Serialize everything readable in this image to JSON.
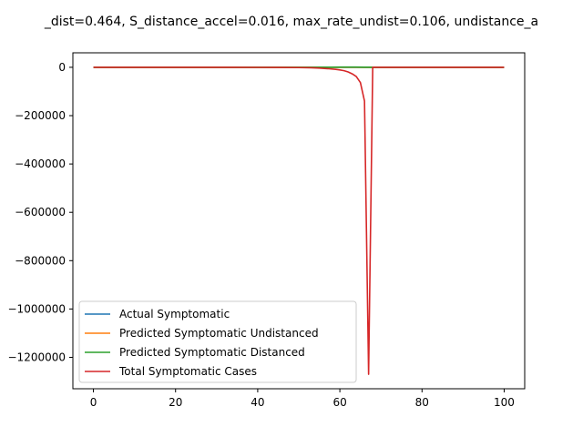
{
  "chart_data": {
    "type": "line",
    "title": "_dist=0.464, S_distance_accel=0.016, max_rate_undist=0.106, undistance_a",
    "xlabel": "",
    "ylabel": "",
    "xlim": [
      -5,
      105
    ],
    "ylim": [
      -1330000,
      60000
    ],
    "x_ticks": [
      0,
      20,
      40,
      60,
      80,
      100
    ],
    "y_ticks": [
      0,
      -200000,
      -400000,
      -600000,
      -800000,
      -1000000,
      -1200000
    ],
    "grid": false,
    "legend_position": "lower-left",
    "series": [
      {
        "name": "Actual Symptomatic",
        "color": "#1f77b4",
        "x": [
          0,
          100
        ],
        "y": [
          0,
          0
        ]
      },
      {
        "name": "Predicted Symptomatic Undistanced",
        "color": "#ff7f0e",
        "x": [
          0,
          100
        ],
        "y": [
          0,
          0
        ]
      },
      {
        "name": "Predicted Symptomatic Distanced",
        "color": "#2ca02c",
        "x": [
          0,
          30,
          50,
          58,
          60,
          62,
          64,
          66,
          67,
          68,
          70,
          80,
          100
        ],
        "y": [
          0,
          0,
          0,
          500,
          800,
          1000,
          800,
          500,
          300,
          0,
          0,
          0,
          0
        ]
      },
      {
        "name": "Total Symptomatic Cases",
        "color": "#d62728",
        "x": [
          0,
          10,
          20,
          30,
          40,
          45,
          50,
          53,
          55,
          57,
          59,
          60,
          61,
          62,
          63,
          64,
          65,
          66,
          67,
          68,
          70,
          80,
          90,
          100
        ],
        "y": [
          0,
          0,
          0,
          -100,
          -300,
          -600,
          -1200,
          -2000,
          -3500,
          -5500,
          -8500,
          -11000,
          -14000,
          -19000,
          -27000,
          -38000,
          -63000,
          -140000,
          -1270000,
          0,
          0,
          0,
          0,
          0
        ]
      }
    ]
  }
}
